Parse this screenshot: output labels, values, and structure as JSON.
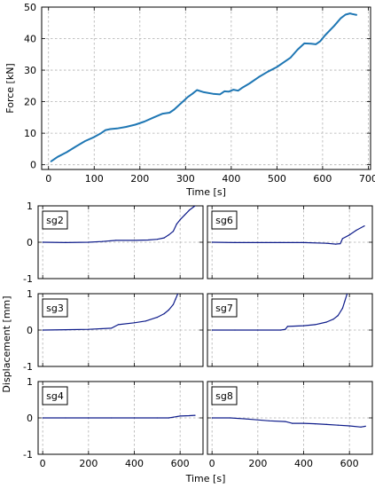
{
  "chart_data": [
    {
      "type": "line",
      "xlabel": "Time [s]",
      "ylabel": "Force [kN]",
      "xlim": [
        -15,
        705
      ],
      "ylim": [
        -1.5,
        50
      ],
      "xticks": [
        0,
        100,
        200,
        300,
        400,
        500,
        600,
        700
      ],
      "yticks": [
        0,
        10,
        20,
        30,
        40,
        50
      ],
      "grid": true,
      "color": "#1f77b4",
      "x": [
        5,
        20,
        40,
        60,
        80,
        100,
        115,
        125,
        135,
        150,
        170,
        190,
        210,
        230,
        250,
        265,
        275,
        290,
        305,
        315,
        325,
        340,
        360,
        375,
        385,
        395,
        405,
        415,
        425,
        440,
        460,
        480,
        500,
        515,
        530,
        545,
        560,
        575,
        585,
        595,
        605,
        615,
        625,
        640,
        650,
        660,
        665,
        675
      ],
      "y": [
        1,
        2.5,
        4,
        5.8,
        7.5,
        8.8,
        10,
        11,
        11.3,
        11.5,
        12,
        12.7,
        13.7,
        15,
        16.2,
        16.5,
        17.5,
        19.5,
        21.5,
        22.5,
        23.7,
        23,
        22.5,
        22.3,
        23.3,
        23.2,
        23.8,
        23.5,
        24.5,
        25.8,
        27.8,
        29.5,
        31,
        32.5,
        34,
        36.5,
        38.5,
        38.4,
        38.2,
        39.2,
        41,
        42.5,
        44,
        46.5,
        47.6,
        48,
        47.8,
        47.5
      ]
    },
    {
      "type": "line",
      "xlabel": "Time [s]",
      "ylabel": "Displacement [mm]",
      "xlim": [
        -20,
        700
      ],
      "ylim": [
        -1,
        1
      ],
      "xticks": [
        0,
        200,
        400,
        600
      ],
      "yticks": [
        -1,
        0,
        1
      ],
      "grid": true,
      "color": "#0d1b8a",
      "panels": [
        {
          "name": "sg2",
          "x": [
            0,
            100,
            200,
            260,
            320,
            400,
            460,
            500,
            530,
            550,
            570,
            585,
            600,
            620,
            640,
            665
          ],
          "y": [
            0.0,
            -0.01,
            0.0,
            0.02,
            0.05,
            0.05,
            0.06,
            0.08,
            0.12,
            0.2,
            0.3,
            0.5,
            0.62,
            0.75,
            0.88,
            1.0
          ]
        },
        {
          "name": "sg6",
          "x": [
            0,
            100,
            200,
            300,
            400,
            500,
            540,
            560,
            570,
            600,
            630,
            665
          ],
          "y": [
            0.0,
            -0.01,
            -0.01,
            -0.01,
            -0.01,
            -0.03,
            -0.05,
            -0.04,
            0.1,
            0.2,
            0.33,
            0.45
          ]
        },
        {
          "name": "sg3",
          "x": [
            0,
            100,
            200,
            300,
            330,
            400,
            450,
            500,
            530,
            550,
            570,
            580,
            590
          ],
          "y": [
            0.0,
            0.01,
            0.02,
            0.05,
            0.15,
            0.2,
            0.25,
            0.35,
            0.45,
            0.55,
            0.7,
            0.85,
            1.0
          ]
        },
        {
          "name": "sg7",
          "x": [
            0,
            100,
            200,
            300,
            320,
            330,
            400,
            450,
            500,
            530,
            550,
            570,
            580,
            590
          ],
          "y": [
            0.0,
            0.0,
            0.0,
            0.0,
            0.02,
            0.1,
            0.12,
            0.15,
            0.22,
            0.3,
            0.4,
            0.6,
            0.8,
            1.0
          ]
        },
        {
          "name": "sg4",
          "x": [
            0,
            100,
            200,
            300,
            400,
            500,
            550,
            570,
            600,
            640,
            665
          ],
          "y": [
            0.0,
            0.0,
            0.0,
            0.0,
            0.0,
            0.0,
            0.0,
            0.02,
            0.05,
            0.06,
            0.07
          ]
        },
        {
          "name": "sg8",
          "x": [
            0,
            80,
            150,
            250,
            320,
            350,
            400,
            450,
            500,
            550,
            600,
            650,
            670
          ],
          "y": [
            0.0,
            0.0,
            -0.03,
            -0.08,
            -0.1,
            -0.15,
            -0.15,
            -0.16,
            -0.18,
            -0.2,
            -0.22,
            -0.25,
            -0.23
          ]
        }
      ]
    }
  ]
}
